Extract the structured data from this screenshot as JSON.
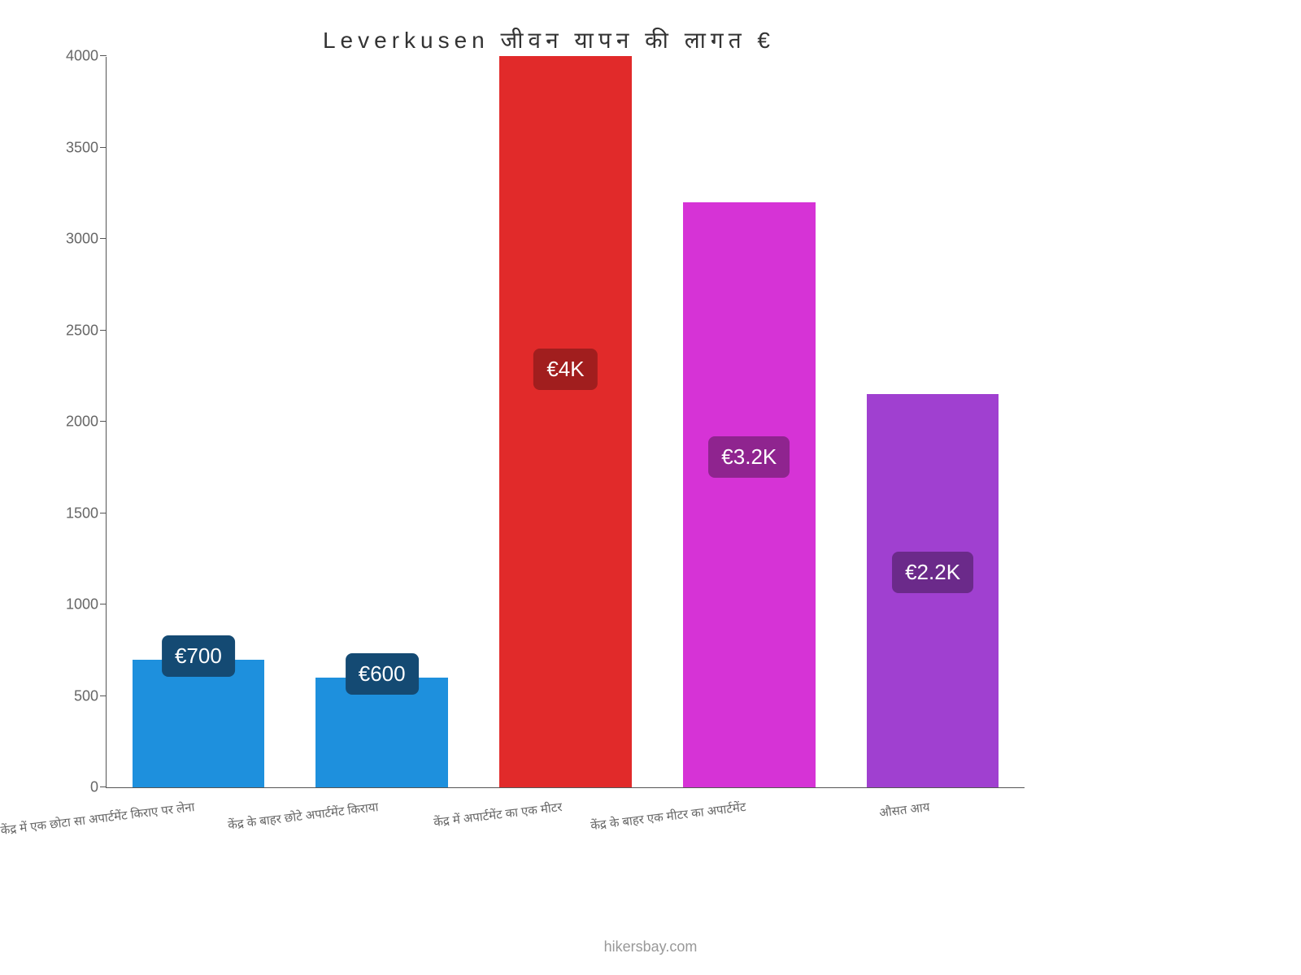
{
  "chart": {
    "type": "bar",
    "title": "Leverkusen जीवन यापन की लागत €",
    "title_fontsize": 28,
    "title_color": "#333333",
    "background_color": "#ffffff",
    "axis_color": "#555555",
    "tick_label_color": "#666666",
    "tick_label_fontsize": 18,
    "xlabel_fontsize": 15,
    "xlabel_rotation_deg": -7,
    "ylim": [
      0,
      4000
    ],
    "yticks": [
      0,
      500,
      1000,
      1500,
      2000,
      2500,
      3000,
      3500,
      4000
    ],
    "bar_width_ratio": 0.8,
    "categories": [
      "केंद्र में एक छोटा सा अपार्टमेंट किराए पर लेना",
      "केंद्र के बाहर छोटे अपार्टमेंट किराया",
      "केंद्र में अपार्टमेंट का एक मीटर",
      "केंद्र के बाहर एक मीटर का अपार्टमेंट",
      "औसत आय"
    ],
    "values": [
      700,
      600,
      4000,
      3200,
      2150
    ],
    "bar_colors": [
      "#1e90dd",
      "#1e90dd",
      "#e12a2a",
      "#d633d6",
      "#a040d0"
    ],
    "value_labels": [
      "€700",
      "€600",
      "€4K",
      "€3.2K",
      "€2.2K"
    ],
    "value_label_bg": [
      "#144a73",
      "#144a73",
      "#a11e1e",
      "#8f248f",
      "#6b2a8a"
    ],
    "value_label_color": "#ffffff",
    "value_label_fontsize": 26,
    "value_label_offset_mode": [
      "top",
      "top",
      "inside",
      "inside",
      "inside"
    ],
    "attribution": "hikersbay.com",
    "attribution_color": "#999999",
    "attribution_fontsize": 18
  }
}
